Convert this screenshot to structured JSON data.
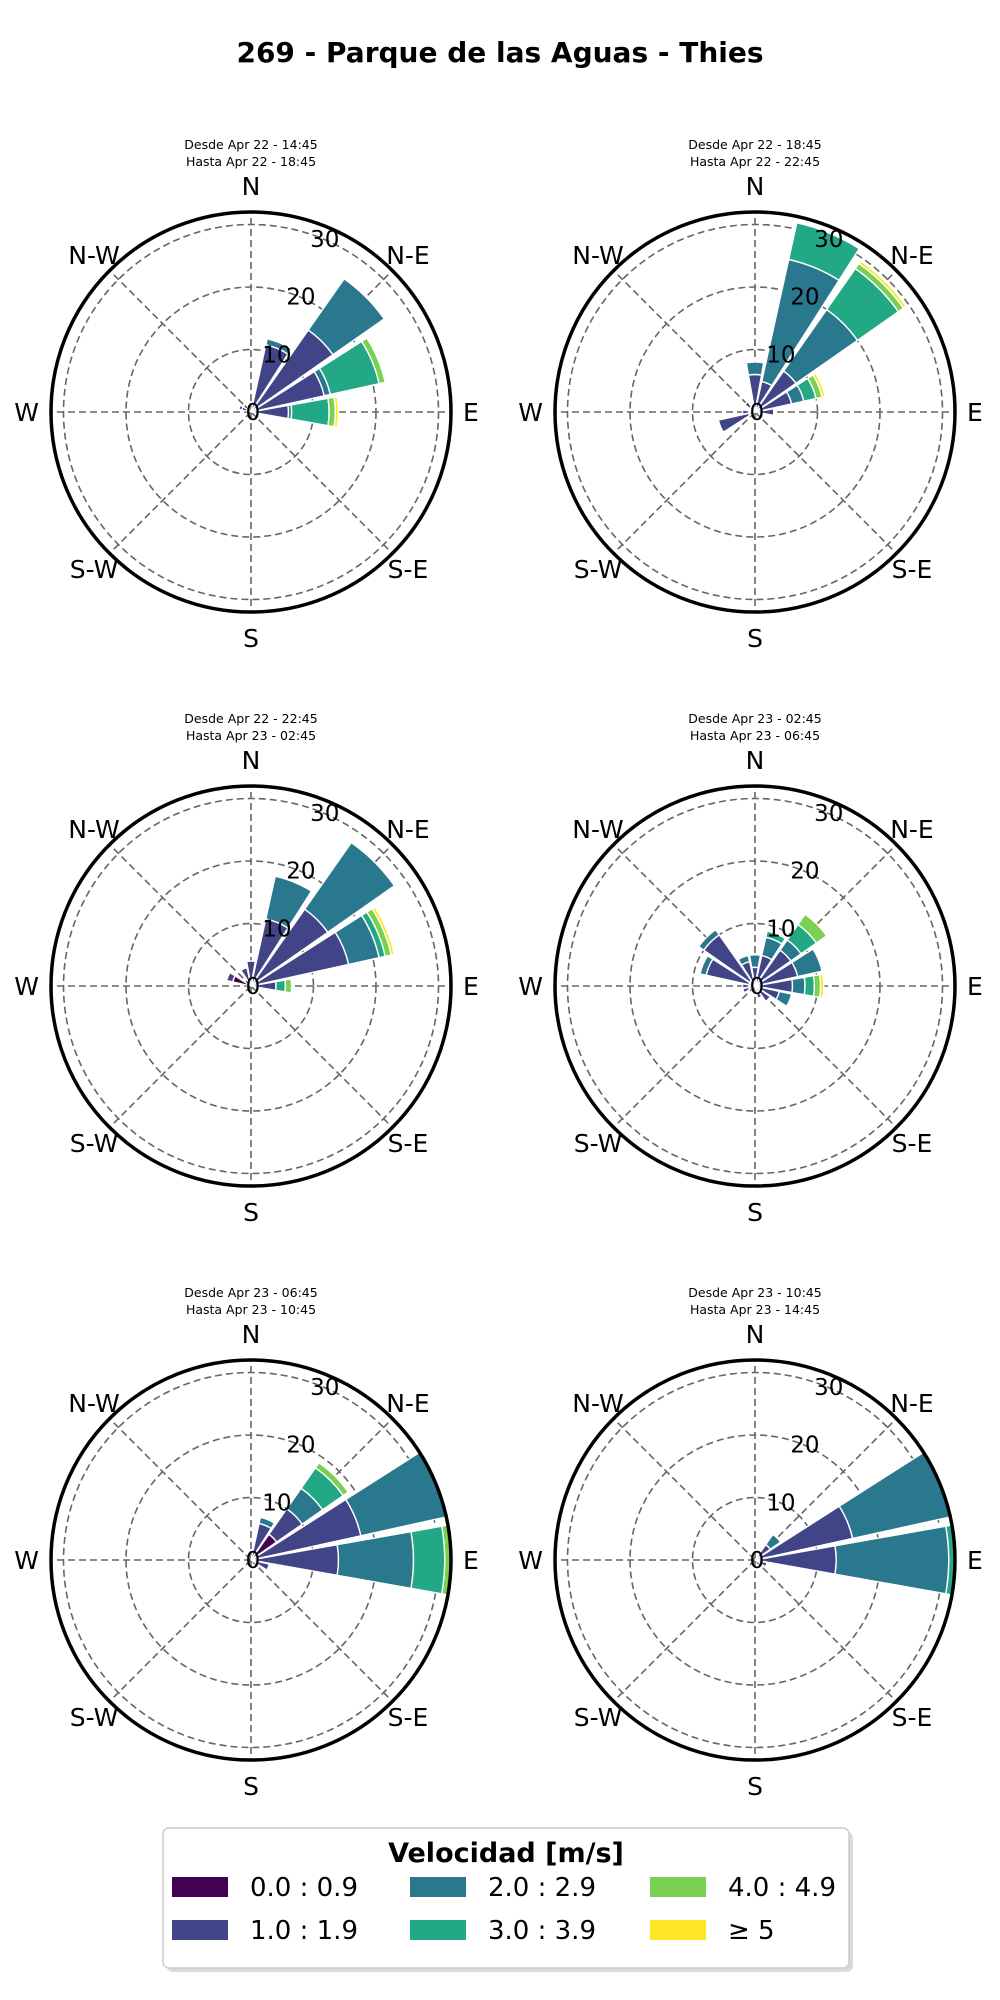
{
  "title": "269 - Parque de las Aguas - Thies",
  "direction_labels": [
    "N",
    "N-E",
    "E",
    "S-E",
    "S",
    "S-W",
    "W",
    "N-W"
  ],
  "colors": {
    "bins": [
      "#440154",
      "#414487",
      "#2a788e",
      "#22a884",
      "#7ad151",
      "#fde725"
    ],
    "grid": "#666666",
    "frame": "#000000"
  },
  "chart_data": [
    {
      "type": "windrose",
      "subtitle": [
        "Desde Apr 22 - 14:45",
        "Hasta Apr 22 - 18:45"
      ],
      "r_ticks": [
        0,
        10,
        20,
        30
      ],
      "rlim": [
        0,
        32
      ],
      "direction_step_deg": 22.5,
      "sectors": [
        {
          "dir": 22.5,
          "values": [
            0,
            11,
            1,
            0,
            0,
            0
          ]
        },
        {
          "dir": 45,
          "values": [
            0,
            16,
            10,
            0,
            0,
            0
          ]
        },
        {
          "dir": 67.5,
          "values": [
            0,
            12,
            1,
            8,
            1,
            0
          ]
        },
        {
          "dir": 90,
          "values": [
            0,
            6,
            0.5,
            6,
            1,
            0.5
          ]
        },
        {
          "dir": 292.5,
          "values": [
            1.5,
            0.5,
            0,
            0,
            0,
            0
          ]
        },
        {
          "dir": 315,
          "values": [
            1.5,
            0,
            0,
            0,
            0,
            0
          ]
        }
      ]
    },
    {
      "type": "windrose",
      "subtitle": [
        "Desde Apr 22 - 18:45",
        "Hasta Apr 22 - 22:45"
      ],
      "r_ticks": [
        0,
        10,
        20,
        30
      ],
      "rlim": [
        0,
        32
      ],
      "direction_step_deg": 22.5,
      "sectors": [
        {
          "dir": 0,
          "values": [
            0,
            6,
            2,
            0,
            0,
            0
          ]
        },
        {
          "dir": 22.5,
          "values": [
            0,
            5,
            20,
            6,
            0,
            0
          ]
        },
        {
          "dir": 45,
          "values": [
            0,
            8,
            12,
            8,
            1,
            0.5
          ]
        },
        {
          "dir": 67.5,
          "values": [
            0,
            6,
            2,
            2,
            1,
            0.5
          ]
        },
        {
          "dir": 90,
          "values": [
            0,
            3,
            0,
            0,
            0,
            0
          ]
        },
        {
          "dir": 247.5,
          "values": [
            1,
            5,
            0,
            0,
            0,
            0
          ]
        },
        {
          "dir": 270,
          "values": [
            1,
            1,
            0,
            0,
            0,
            0
          ]
        },
        {
          "dir": 315,
          "values": [
            1,
            1,
            0,
            0,
            0,
            0
          ]
        }
      ]
    },
    {
      "type": "windrose",
      "subtitle": [
        "Desde Apr 22 - 22:45",
        "Hasta Apr 23 - 02:45"
      ],
      "r_ticks": [
        0,
        10,
        20,
        30
      ],
      "rlim": [
        0,
        32
      ],
      "direction_step_deg": 22.5,
      "sectors": [
        {
          "dir": 0,
          "values": [
            0,
            4,
            0,
            0,
            0,
            0
          ]
        },
        {
          "dir": 22.5,
          "values": [
            0,
            11,
            7,
            0,
            0,
            0
          ]
        },
        {
          "dir": 45,
          "values": [
            0,
            15,
            13,
            0,
            0,
            0
          ]
        },
        {
          "dir": 67.5,
          "values": [
            0,
            16,
            5,
            1,
            1,
            0.5
          ]
        },
        {
          "dir": 90,
          "values": [
            0,
            4,
            0,
            1.5,
            1,
            0
          ]
        },
        {
          "dir": 292.5,
          "values": [
            3,
            1,
            0,
            0,
            0,
            0
          ]
        },
        {
          "dir": 337.5,
          "values": [
            1,
            2,
            0,
            0,
            0,
            0
          ]
        }
      ]
    },
    {
      "type": "windrose",
      "subtitle": [
        "Desde Apr 23 - 02:45",
        "Hasta Apr 23 - 06:45"
      ],
      "r_ticks": [
        0,
        10,
        20,
        30
      ],
      "rlim": [
        0,
        32
      ],
      "direction_step_deg": 22.5,
      "sectors": [
        {
          "dir": 0,
          "values": [
            0,
            3,
            2,
            0,
            0,
            0
          ]
        },
        {
          "dir": 22.5,
          "values": [
            0,
            5,
            3,
            1,
            0,
            0
          ]
        },
        {
          "dir": 45,
          "values": [
            0,
            7,
            2,
            3,
            2,
            0
          ]
        },
        {
          "dir": 67.5,
          "values": [
            0,
            7,
            4,
            0,
            0,
            0
          ]
        },
        {
          "dir": 90,
          "values": [
            0,
            6,
            2,
            1.5,
            1,
            0.5
          ]
        },
        {
          "dir": 112.5,
          "values": [
            0,
            4,
            2,
            0,
            0,
            0
          ]
        },
        {
          "dir": 135,
          "values": [
            1,
            2,
            0,
            0,
            0,
            0
          ]
        },
        {
          "dir": 157.5,
          "values": [
            1,
            1,
            0,
            0,
            0,
            0
          ]
        },
        {
          "dir": 247.5,
          "values": [
            1,
            1,
            0,
            0,
            0,
            0
          ]
        },
        {
          "dir": 270,
          "values": [
            1,
            1,
            0,
            0,
            0,
            0
          ]
        },
        {
          "dir": 292.5,
          "values": [
            1,
            7,
            1,
            0,
            0,
            0
          ]
        },
        {
          "dir": 315,
          "values": [
            1,
            9,
            1,
            0,
            0,
            0
          ]
        },
        {
          "dir": 337.5,
          "values": [
            1,
            3,
            1,
            0,
            0,
            0
          ]
        }
      ]
    },
    {
      "type": "windrose",
      "subtitle": [
        "Desde Apr 23 - 06:45",
        "Hasta Apr 23 - 10:45"
      ],
      "r_ticks": [
        0,
        10,
        20,
        30
      ],
      "rlim": [
        0,
        32
      ],
      "direction_step_deg": 22.5,
      "sectors": [
        {
          "dir": 22.5,
          "values": [
            0,
            6,
            1,
            0,
            0,
            0
          ]
        },
        {
          "dir": 45,
          "values": [
            0,
            10,
            4,
            4,
            1,
            0
          ]
        },
        {
          "dir": 67.5,
          "values": [
            0,
            18,
            14,
            0,
            0,
            0
          ]
        },
        {
          "dir": 90,
          "values": [
            0,
            14,
            12,
            5,
            1,
            0
          ]
        },
        {
          "dir": 112.5,
          "values": [
            0,
            3,
            0,
            0,
            0,
            0
          ]
        },
        {
          "dir": 45,
          "values": [
            5,
            0,
            0,
            0,
            0,
            0
          ]
        }
      ]
    },
    {
      "type": "windrose",
      "subtitle": [
        "Desde Apr 23 - 10:45",
        "Hasta Apr 23 - 14:45"
      ],
      "r_ticks": [
        0,
        10,
        20,
        30
      ],
      "rlim": [
        0,
        32
      ],
      "direction_step_deg": 22.5,
      "sectors": [
        {
          "dir": 45,
          "values": [
            0,
            3,
            2,
            0,
            0,
            0
          ]
        },
        {
          "dir": 67.5,
          "values": [
            0,
            16,
            16,
            0,
            0,
            0
          ]
        },
        {
          "dir": 90,
          "values": [
            0,
            13,
            18,
            1,
            0,
            0
          ]
        },
        {
          "dir": 112.5,
          "values": [
            0,
            2,
            0,
            0,
            0,
            0
          ]
        }
      ]
    }
  ],
  "legend": {
    "title": "Velocidad [m/s]",
    "entries": [
      "0.0 : 0.9",
      "1.0 : 1.9",
      "2.0 : 2.9",
      "3.0 : 3.9",
      "4.0 : 4.9",
      "≥ 5"
    ]
  }
}
